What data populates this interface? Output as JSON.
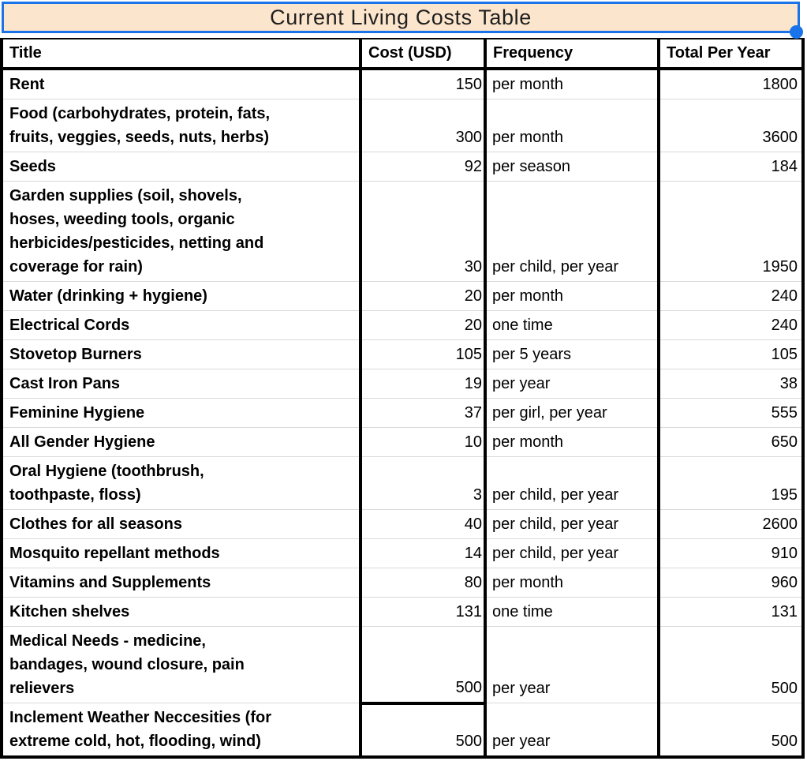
{
  "title_bar": {
    "text": "Current Living Costs Table"
  },
  "colors": {
    "title_cell_bg": "#fce5cd",
    "selection_blue": "#1a73e8",
    "row_divider": "#d9d9d9",
    "table_border": "#000000"
  },
  "table": {
    "headers": [
      "Title",
      "Cost (USD)",
      "Frequency",
      "Total Per Year"
    ],
    "rows": [
      {
        "title": "Rent",
        "cost": "150",
        "frequency": "per month",
        "total": "1800"
      },
      {
        "title": "Food (carbohydrates, protein, fats,\nfruits, veggies, seeds, nuts, herbs)",
        "cost": "300",
        "frequency": "per month",
        "total": "3600"
      },
      {
        "title": "Seeds",
        "cost": "92",
        "frequency": "per season",
        "total": "184"
      },
      {
        "title": "Garden supplies (soil, shovels,\nhoses, weeding tools, organic\nherbicides/pesticides, netting and\ncoverage for rain)",
        "cost": "30",
        "frequency": "per child, per year",
        "total": "1950"
      },
      {
        "title": "Water (drinking + hygiene)",
        "cost": "20",
        "frequency": "per month",
        "total": "240"
      },
      {
        "title": "Electrical Cords",
        "cost": "20",
        "frequency": "one time",
        "total": "240"
      },
      {
        "title": "Stovetop Burners",
        "cost": "105",
        "frequency": "per 5 years",
        "total": "105"
      },
      {
        "title": "Cast Iron Pans",
        "cost": "19",
        "frequency": "per year",
        "total": "38"
      },
      {
        "title": "Feminine Hygiene",
        "cost": "37",
        "frequency": "per girl, per year",
        "total": "555"
      },
      {
        "title": "All Gender Hygiene",
        "cost": "10",
        "frequency": "per month",
        "total": "650"
      },
      {
        "title": "Oral Hygiene (toothbrush,\ntoothpaste, floss)",
        "cost": "3",
        "frequency": "per child, per year",
        "total": "195"
      },
      {
        "title": "Clothes for all seasons",
        "cost": "40",
        "frequency": "per child, per year",
        "total": "2600"
      },
      {
        "title": "Mosquito repellant methods",
        "cost": "14",
        "frequency": "per child, per year",
        "total": "910"
      },
      {
        "title": "Vitamins and Supplements",
        "cost": "80",
        "frequency": "per month",
        "total": "960"
      },
      {
        "title": "Kitchen shelves",
        "cost": "131",
        "frequency": "one time",
        "total": "131"
      },
      {
        "title": "Medical Needs - medicine,\nbandages, wound closure, pain\nrelievers",
        "cost": "500",
        "frequency": "per year",
        "total": "500",
        "cost_thick_bottom": true
      },
      {
        "title": "Inclement Weather Neccesities (for\nextreme cold, hot, flooding, wind)",
        "cost": "500",
        "frequency": "per year",
        "total": "500"
      }
    ]
  }
}
